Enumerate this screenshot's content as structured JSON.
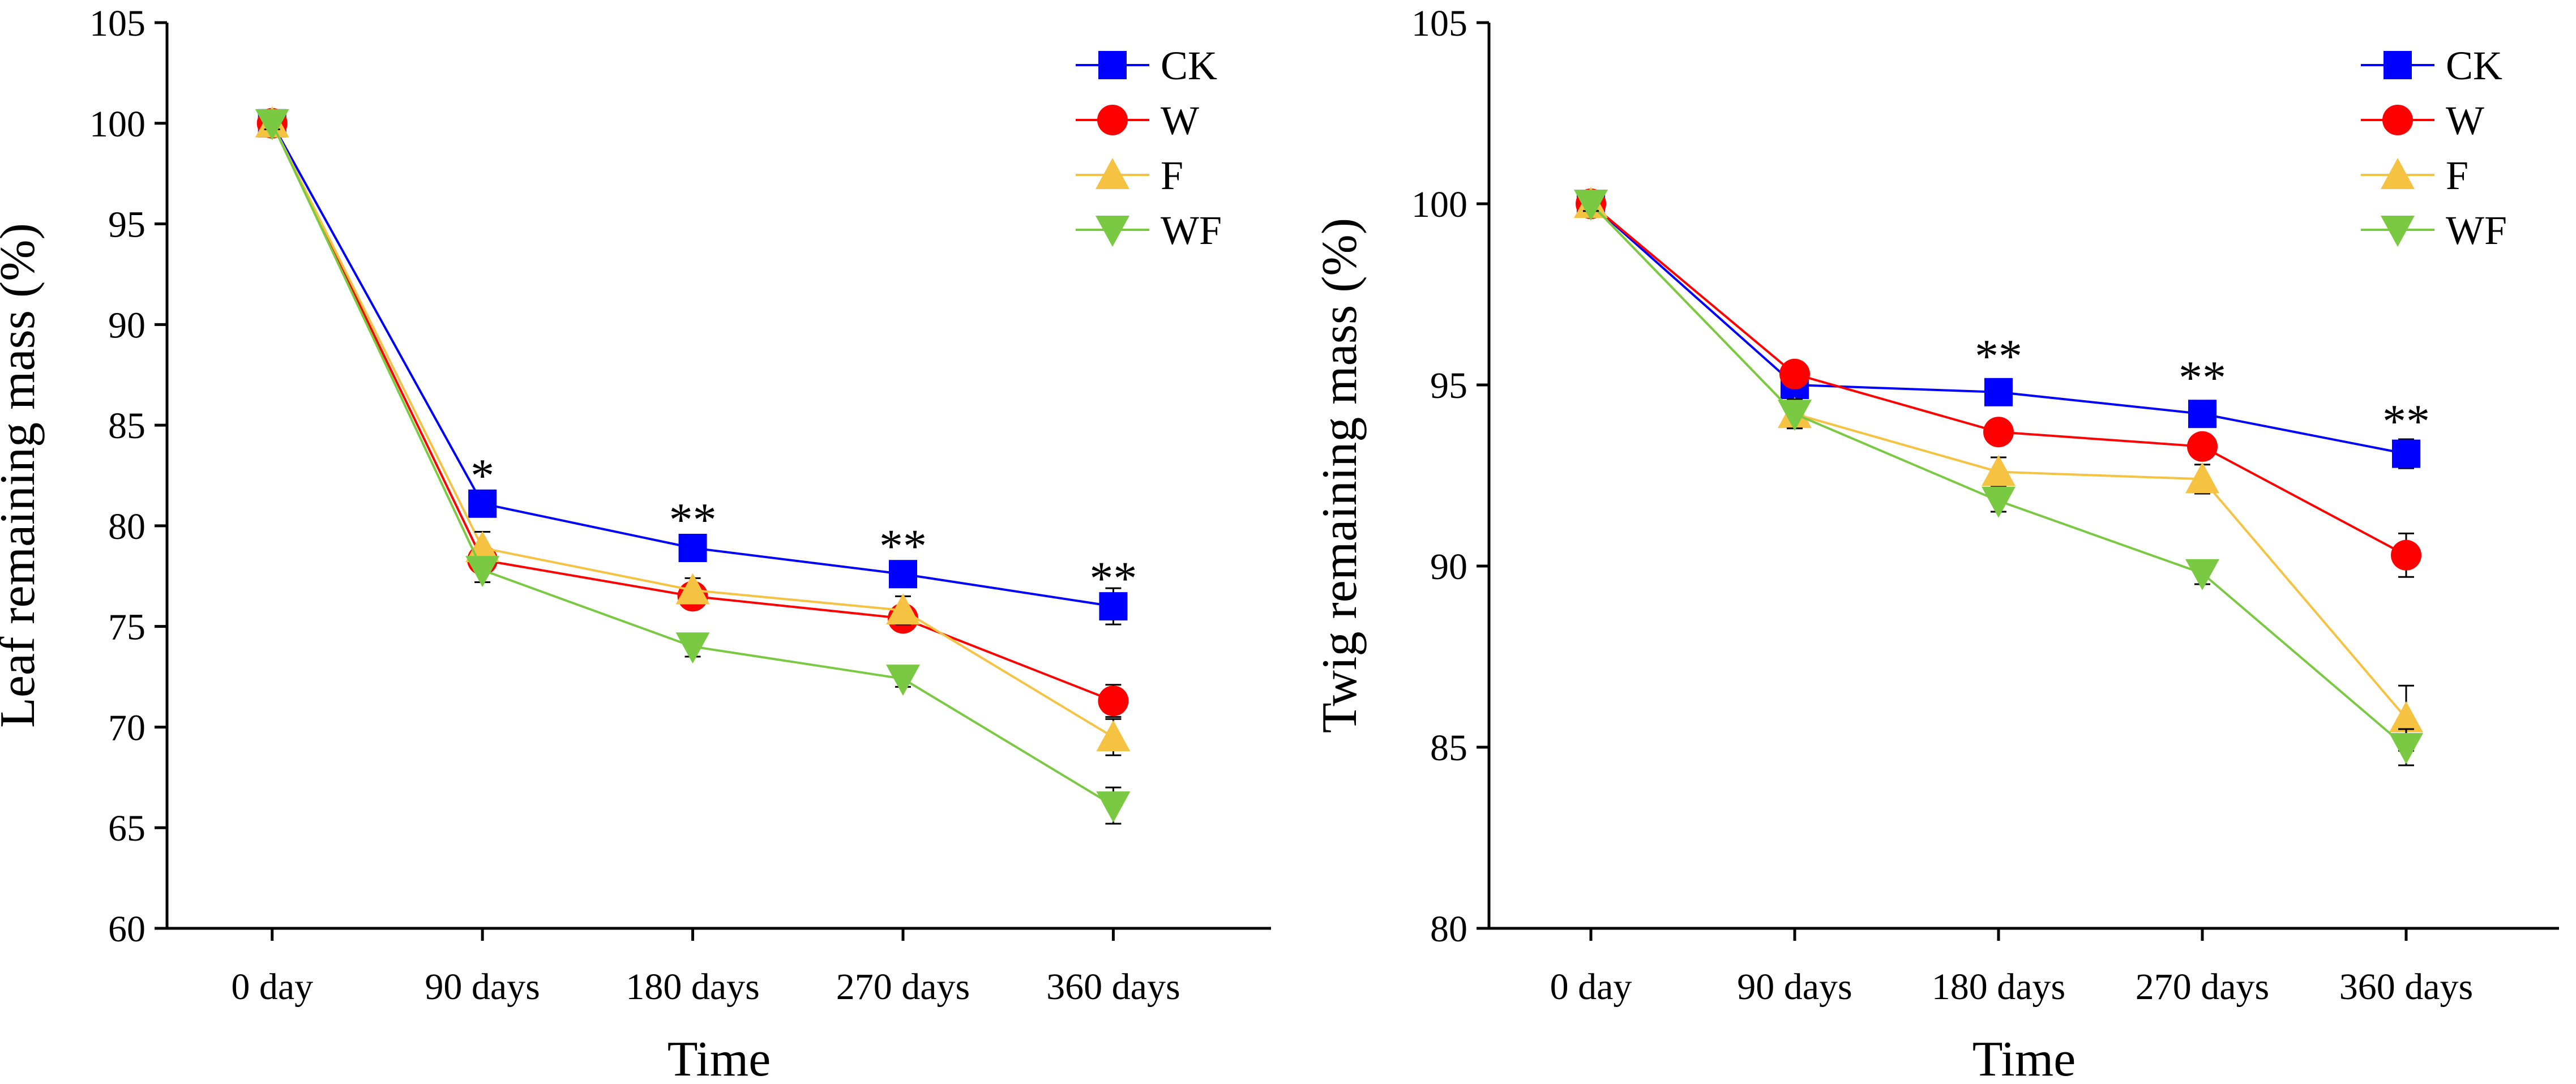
{
  "chart_data": [
    {
      "type": "line",
      "title": "",
      "xlabel": "Time",
      "ylabel": "Leaf remaining mass (%)",
      "categories": [
        "0 day",
        "90 days",
        "180 days",
        "270 days",
        "360 days"
      ],
      "ylim": [
        60,
        105
      ],
      "yticks": [
        60,
        65,
        70,
        75,
        80,
        85,
        90,
        95,
        100,
        105
      ],
      "legend_position": "top-right",
      "grid": false,
      "series": [
        {
          "name": "CK",
          "color": "#0000ff",
          "marker": "square",
          "values": [
            100,
            81.1,
            78.9,
            77.6,
            76.0
          ],
          "errors": [
            0.3,
            0.5,
            0.4,
            0.5,
            0.9
          ]
        },
        {
          "name": "W",
          "color": "#ff0000",
          "marker": "circle",
          "values": [
            100,
            78.3,
            76.5,
            75.4,
            71.3
          ],
          "errors": [
            0.3,
            0.6,
            0.4,
            0.5,
            0.8
          ]
        },
        {
          "name": "F",
          "color": "#f5c242",
          "marker": "triangle-up",
          "values": [
            100,
            78.9,
            76.8,
            75.8,
            69.5
          ],
          "errors": [
            0.3,
            0.8,
            0.6,
            0.7,
            0.9
          ]
        },
        {
          "name": "WF",
          "color": "#7ac943",
          "marker": "triangle-down",
          "values": [
            100,
            77.8,
            74.0,
            72.4,
            66.1
          ],
          "errors": [
            0.3,
            0.6,
            0.5,
            0.4,
            0.9
          ]
        }
      ],
      "annotations": [
        {
          "category": "90 days",
          "text": "*",
          "y": 82.5
        },
        {
          "category": "180 days",
          "text": "**",
          "y": 80.3
        },
        {
          "category": "270 days",
          "text": "**",
          "y": 79.0
        },
        {
          "category": "360 days",
          "text": "**",
          "y": 77.4
        }
      ]
    },
    {
      "type": "line",
      "title": "",
      "xlabel": "Time",
      "ylabel": "Twig remaining mass (%)",
      "categories": [
        "0 day",
        "90 days",
        "180 days",
        "270 days",
        "360 days"
      ],
      "ylim": [
        80,
        105
      ],
      "yticks": [
        80,
        85,
        90,
        95,
        100,
        105
      ],
      "legend_position": "top-right",
      "grid": false,
      "series": [
        {
          "name": "CK",
          "color": "#0000ff",
          "marker": "square",
          "values": [
            100,
            95.0,
            94.8,
            94.2,
            93.1
          ],
          "errors": [
            0.2,
            0.3,
            0.2,
            0.3,
            0.4
          ]
        },
        {
          "name": "W",
          "color": "#ff0000",
          "marker": "circle",
          "values": [
            100,
            95.3,
            93.7,
            93.3,
            90.3
          ],
          "errors": [
            0.2,
            0.3,
            0.3,
            0.3,
            0.6
          ]
        },
        {
          "name": "F",
          "color": "#f5c242",
          "marker": "triangle-up",
          "values": [
            100,
            94.2,
            92.6,
            92.4,
            85.8
          ],
          "errors": [
            0.2,
            0.3,
            0.4,
            0.4,
            0.9
          ]
        },
        {
          "name": "WF",
          "color": "#7ac943",
          "marker": "triangle-down",
          "values": [
            100,
            94.2,
            91.8,
            89.8,
            85.0
          ],
          "errors": [
            0.2,
            0.4,
            0.3,
            0.3,
            0.5
          ]
        }
      ],
      "annotations": [
        {
          "category": "180 days",
          "text": "**",
          "y": 95.8
        },
        {
          "category": "270 days",
          "text": "**",
          "y": 95.2
        },
        {
          "category": "360 days",
          "text": "**",
          "y": 94.0
        }
      ]
    }
  ]
}
